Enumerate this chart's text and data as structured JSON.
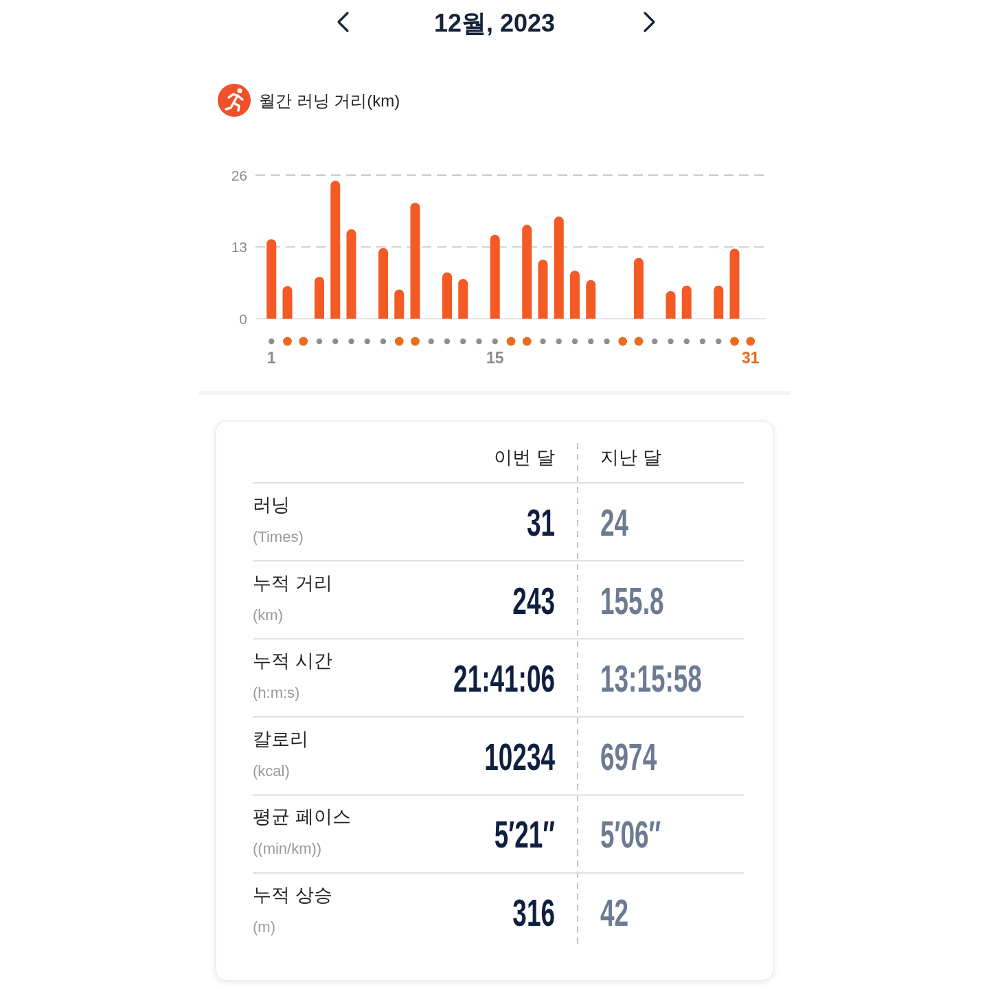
{
  "chart_data": [
    {
      "type": "bar",
      "title": "12월, 2023",
      "subtitle": "월간 러닝 거리(km)",
      "x": [
        "2023-12-01",
        "2023-12-02",
        "2023-12-04",
        "2023-12-05",
        "2023-12-06",
        "2023-12-08",
        "2023-12-09",
        "2023-12-10",
        "2023-12-12",
        "2023-12-13",
        "2023-12-15",
        "2023-12-17",
        "2023-12-18",
        "2023-12-19",
        "2023-12-20",
        "2023-12-21",
        "2023-12-24",
        "2023-12-26",
        "2023-12-27",
        "2023-12-29",
        "2023-12-30"
      ],
      "values": [
        14.4,
        5.9,
        7.6,
        25.0,
        16.2,
        12.8,
        5.3,
        21.0,
        8.4,
        7.2,
        15.2,
        17.0,
        10.7,
        18.5,
        8.7,
        7.0,
        11.0,
        5.0,
        6.0,
        6.0,
        12.7
      ],
      "color": "#f35a24",
      "xlim": [
        "2023-11-30",
        "2024-01-01"
      ],
      "xticks": [
        {
          "value": "2023-12-01",
          "label": "1"
        },
        {
          "value": "2023-12-15",
          "label": "15"
        },
        {
          "value": "2023-12-31",
          "label": "31"
        }
      ],
      "ylim": [
        0,
        26
      ],
      "yticks": [
        0,
        13,
        26
      ],
      "grid": "y"
    },
    {
      "type": "other",
      "categories": [
        "이번 달",
        "지난 달"
      ],
      "y_categories": [
        "러닝",
        "누적 거리",
        "누적 시간",
        "칼로리",
        "평균 페이스",
        "누적 상승"
      ],
      "y2_categories": [
        "(Times)",
        "(km)",
        "(h:m:s)",
        "(kcal)",
        "((min/km))",
        "(m)"
      ],
      "cell_labels": [
        [
          "31",
          "24"
        ],
        [
          "243",
          "155.8"
        ],
        [
          "21:41:06",
          "13:15:58"
        ],
        [
          "10234",
          "6974"
        ],
        [
          "5′21″",
          "5′06″"
        ],
        [
          "316",
          "42"
        ]
      ]
    }
  ]
}
